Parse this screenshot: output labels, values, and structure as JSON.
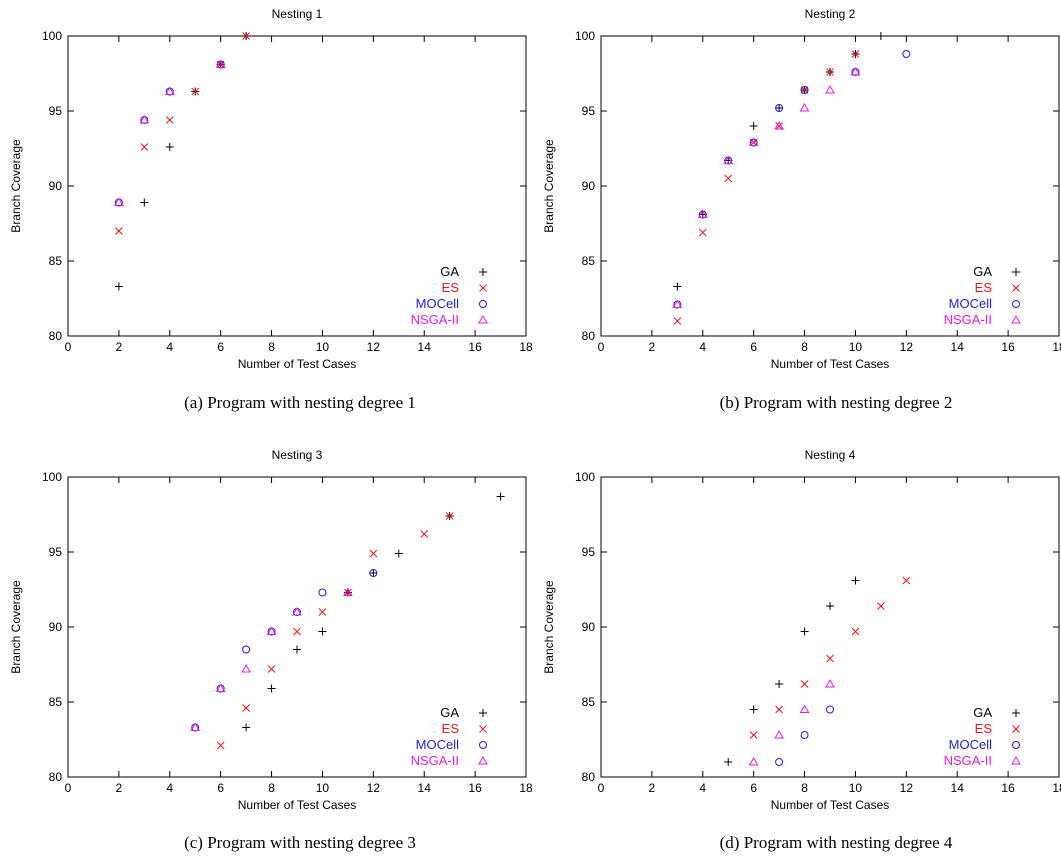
{
  "figure": {
    "captions": [
      "(a) Program with nesting degree 1",
      "(b) Program with nesting degree 2",
      "(c) Program with nesting degree 3",
      "(d) Program with nesting degree 4"
    ]
  },
  "colors": {
    "GA": "#000000",
    "ES": "#e41a1c",
    "MOCell": "#1f1fd6",
    "NSGA-II": "#e01ee0"
  },
  "chart_data": [
    {
      "type": "scatter",
      "title": "Nesting 1",
      "xlabel": "Number of Test Cases",
      "ylabel": "Branch Coverage",
      "xlim": [
        0,
        18
      ],
      "ylim": [
        80,
        100
      ],
      "xticks": [
        0,
        2,
        4,
        6,
        8,
        10,
        12,
        14,
        16,
        18
      ],
      "yticks": [
        80,
        85,
        90,
        95,
        100
      ],
      "legend": "bottom-right",
      "series": [
        {
          "name": "GA",
          "points": [
            [
              2,
              83.3
            ],
            [
              3,
              88.9
            ],
            [
              4,
              92.6
            ],
            [
              5,
              96.3
            ],
            [
              6,
              98.1
            ],
            [
              7,
              100
            ]
          ]
        },
        {
          "name": "ES",
          "points": [
            [
              2,
              87.0
            ],
            [
              3,
              92.6
            ],
            [
              4,
              94.4
            ],
            [
              5,
              96.3
            ],
            [
              6,
              98.1
            ],
            [
              7,
              100
            ]
          ]
        },
        {
          "name": "MOCell",
          "points": [
            [
              2,
              88.9
            ],
            [
              3,
              94.4
            ],
            [
              4,
              96.3
            ],
            [
              6,
              98.1
            ]
          ]
        },
        {
          "name": "NSGA-II",
          "points": [
            [
              2,
              88.9
            ],
            [
              3,
              94.4
            ],
            [
              4,
              96.3
            ],
            [
              6,
              98.1
            ]
          ]
        }
      ]
    },
    {
      "type": "scatter",
      "title": "Nesting 2",
      "xlabel": "Number of Test Cases",
      "ylabel": "Branch Coverage",
      "xlim": [
        0,
        18
      ],
      "ylim": [
        80,
        100
      ],
      "xticks": [
        0,
        2,
        4,
        6,
        8,
        10,
        12,
        14,
        16,
        18
      ],
      "yticks": [
        80,
        85,
        90,
        95,
        100
      ],
      "legend": "bottom-right",
      "series": [
        {
          "name": "GA",
          "points": [
            [
              3,
              83.3
            ],
            [
              4,
              88.1
            ],
            [
              5,
              91.7
            ],
            [
              6,
              94.0
            ],
            [
              7,
              95.2
            ],
            [
              8,
              96.4
            ],
            [
              9,
              97.6
            ],
            [
              10,
              98.8
            ],
            [
              11,
              100
            ]
          ]
        },
        {
          "name": "ES",
          "points": [
            [
              3,
              81.0
            ],
            [
              4,
              86.9
            ],
            [
              5,
              90.5
            ],
            [
              6,
              92.9
            ],
            [
              7,
              94.0
            ],
            [
              8,
              96.4
            ],
            [
              9,
              97.6
            ],
            [
              10,
              98.8
            ]
          ]
        },
        {
          "name": "MOCell",
          "points": [
            [
              3,
              82.1
            ],
            [
              4,
              88.1
            ],
            [
              5,
              91.7
            ],
            [
              6,
              92.9
            ],
            [
              7,
              95.2
            ],
            [
              8,
              96.4
            ],
            [
              10,
              97.6
            ],
            [
              12,
              98.8
            ]
          ]
        },
        {
          "name": "NSGA-II",
          "points": [
            [
              3,
              82.1
            ],
            [
              4,
              88.1
            ],
            [
              5,
              91.7
            ],
            [
              6,
              92.9
            ],
            [
              7,
              94.0
            ],
            [
              8,
              95.2
            ],
            [
              9,
              96.4
            ],
            [
              10,
              97.6
            ]
          ]
        }
      ]
    },
    {
      "type": "scatter",
      "title": "Nesting 3",
      "xlabel": "Number of Test Cases",
      "ylabel": "Branch Coverage",
      "xlim": [
        0,
        18
      ],
      "ylim": [
        80,
        100
      ],
      "xticks": [
        0,
        2,
        4,
        6,
        8,
        10,
        12,
        14,
        16,
        18
      ],
      "yticks": [
        80,
        85,
        90,
        95,
        100
      ],
      "legend": "bottom-right",
      "series": [
        {
          "name": "GA",
          "points": [
            [
              7,
              83.3
            ],
            [
              8,
              85.9
            ],
            [
              9,
              88.5
            ],
            [
              10,
              89.7
            ],
            [
              11,
              92.3
            ],
            [
              12,
              93.6
            ],
            [
              13,
              94.9
            ],
            [
              15,
              97.4
            ],
            [
              17,
              98.7
            ]
          ]
        },
        {
          "name": "ES",
          "points": [
            [
              6,
              82.1
            ],
            [
              7,
              84.6
            ],
            [
              8,
              87.2
            ],
            [
              9,
              89.7
            ],
            [
              10,
              91.0
            ],
            [
              11,
              92.3
            ],
            [
              12,
              94.9
            ],
            [
              14,
              96.2
            ],
            [
              15,
              97.4
            ]
          ]
        },
        {
          "name": "MOCell",
          "points": [
            [
              5,
              83.3
            ],
            [
              6,
              85.9
            ],
            [
              7,
              88.5
            ],
            [
              8,
              89.7
            ],
            [
              9,
              91.0
            ],
            [
              10,
              92.3
            ],
            [
              12,
              93.6
            ]
          ]
        },
        {
          "name": "NSGA-II",
          "points": [
            [
              5,
              83.3
            ],
            [
              6,
              85.9
            ],
            [
              7,
              87.2
            ],
            [
              8,
              89.7
            ],
            [
              9,
              91.0
            ],
            [
              11,
              92.3
            ]
          ]
        }
      ]
    },
    {
      "type": "scatter",
      "title": "Nesting 4",
      "xlabel": "Number of Test Cases",
      "ylabel": "Branch Coverage",
      "xlim": [
        0,
        18
      ],
      "ylim": [
        80,
        100
      ],
      "xticks": [
        0,
        2,
        4,
        6,
        8,
        10,
        12,
        14,
        16,
        18
      ],
      "yticks": [
        80,
        85,
        90,
        95,
        100
      ],
      "legend": "bottom-right",
      "series": [
        {
          "name": "GA",
          "points": [
            [
              5,
              81.0
            ],
            [
              6,
              84.5
            ],
            [
              7,
              86.2
            ],
            [
              8,
              89.7
            ],
            [
              9,
              91.4
            ],
            [
              10,
              93.1
            ]
          ]
        },
        {
          "name": "ES",
          "points": [
            [
              6,
              82.8
            ],
            [
              7,
              84.5
            ],
            [
              8,
              86.2
            ],
            [
              9,
              87.9
            ],
            [
              10,
              89.7
            ],
            [
              11,
              91.4
            ],
            [
              12,
              93.1
            ]
          ]
        },
        {
          "name": "MOCell",
          "points": [
            [
              7,
              81.0
            ],
            [
              8,
              82.8
            ],
            [
              9,
              84.5
            ]
          ]
        },
        {
          "name": "NSGA-II",
          "points": [
            [
              6,
              81.0
            ],
            [
              7,
              82.8
            ],
            [
              8,
              84.5
            ],
            [
              9,
              86.2
            ]
          ]
        }
      ]
    }
  ]
}
